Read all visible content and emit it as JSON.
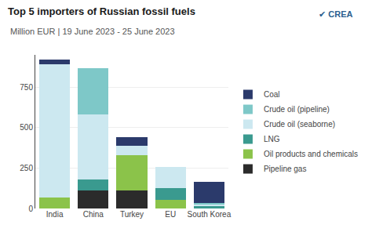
{
  "chart_data": {
    "type": "bar",
    "stacked": true,
    "title": "Top 5 importers of Russian fossil fuels",
    "subtitle": "Million EUR | 19 June 2023 - 25 June 2023",
    "annotations": [
      "✔ CREA"
    ],
    "categories": [
      "India",
      "China",
      "Turkey",
      "EU",
      "South Korea"
    ],
    "series": [
      {
        "name": "Pipeline gas",
        "color": "#2b2b2b",
        "values": [
          0,
          110,
          110,
          0,
          0
        ]
      },
      {
        "name": "Oil products and chemicals",
        "color": "#8bc34a",
        "values": [
          70,
          0,
          220,
          55,
          0
        ]
      },
      {
        "name": "LNG",
        "color": "#3a9a8f",
        "values": [
          0,
          70,
          0,
          70,
          15
        ]
      },
      {
        "name": "Crude oil (seaborne)",
        "color": "#cce8f0",
        "values": [
          820,
          400,
          60,
          130,
          10
        ]
      },
      {
        "name": "Crude oil (pipeline)",
        "color": "#7ec8c8",
        "values": [
          0,
          290,
          0,
          0,
          10
        ]
      },
      {
        "name": "Coal",
        "color": "#2b3a6b",
        "values": [
          30,
          0,
          50,
          0,
          130
        ]
      }
    ],
    "ylim": [
      0,
      950
    ],
    "yticks": [
      0,
      250,
      500,
      750
    ],
    "grid": true,
    "legend": "right"
  }
}
